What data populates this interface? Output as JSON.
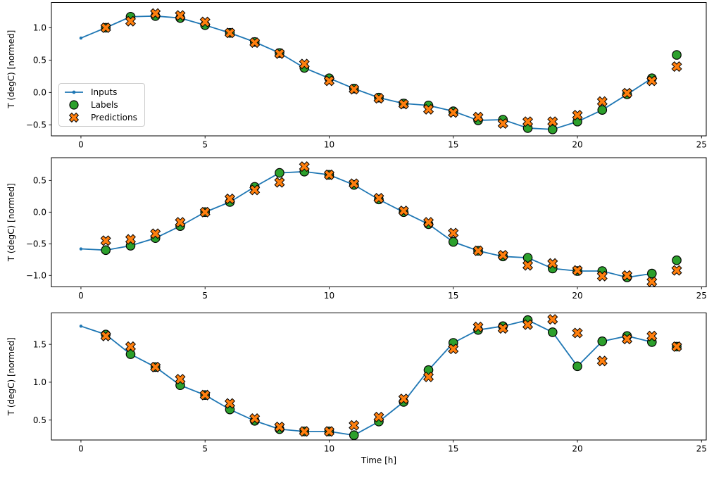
{
  "figure": {
    "background": "#ffffff",
    "frame_color": "#000000"
  },
  "colors": {
    "inputs": "#1f77b4",
    "labels": "#2ca02c",
    "predictions": "#ff7f0e",
    "marker_edge": "#000000",
    "legend_border": "#cccccc"
  },
  "legend": {
    "position": "upper-left-of-first-subplot",
    "items": [
      {
        "label": "Inputs",
        "swatch": "line-dot-icon"
      },
      {
        "label": "Labels",
        "swatch": "circle-icon"
      },
      {
        "label": "Predictions",
        "swatch": "x-icon"
      }
    ]
  },
  "chart_data": [
    {
      "type": "line",
      "title": "",
      "xlabel": "",
      "ylabel": "T (degC) [normed]",
      "xlim": [
        -1.19,
        25.19
      ],
      "ylim": [
        -0.67,
        1.39
      ],
      "xticks": [
        0,
        5,
        10,
        15,
        20,
        25
      ],
      "xticklabels": [
        "0",
        "5",
        "10",
        "15",
        "20",
        "25"
      ],
      "yticks": [
        1.0,
        0.5,
        0.0,
        -0.5
      ],
      "yticklabels": [
        "1.0",
        "0.5",
        "0.0",
        "−0.5"
      ],
      "grid": false,
      "has_legend": true,
      "series": [
        {
          "name": "Inputs",
          "style": "line-dot",
          "color": "#1f77b4",
          "x": [
            0,
            1,
            2,
            3,
            4,
            5,
            6,
            7,
            8,
            9,
            10,
            11,
            12,
            13,
            14,
            15,
            16,
            17,
            18,
            19,
            20,
            21,
            22,
            23
          ],
          "y": [
            0.84,
            1.0,
            1.17,
            1.18,
            1.15,
            1.04,
            0.92,
            0.78,
            0.61,
            0.38,
            0.22,
            0.06,
            -0.08,
            -0.17,
            -0.2,
            -0.29,
            -0.43,
            -0.42,
            -0.55,
            -0.57,
            -0.45,
            -0.27,
            -0.03,
            0.22
          ]
        },
        {
          "name": "Labels",
          "style": "circle",
          "color": "#2ca02c",
          "x": [
            1,
            2,
            3,
            4,
            5,
            6,
            7,
            8,
            9,
            10,
            11,
            12,
            13,
            14,
            15,
            16,
            17,
            18,
            19,
            20,
            21,
            22,
            23,
            24
          ],
          "y": [
            1.0,
            1.17,
            1.18,
            1.15,
            1.04,
            0.92,
            0.78,
            0.61,
            0.38,
            0.22,
            0.06,
            -0.08,
            -0.17,
            -0.2,
            -0.29,
            -0.43,
            -0.42,
            -0.55,
            -0.57,
            -0.45,
            -0.27,
            -0.03,
            0.22,
            0.58
          ]
        },
        {
          "name": "Predictions",
          "style": "x",
          "color": "#ff7f0e",
          "x": [
            1,
            2,
            3,
            4,
            5,
            6,
            7,
            8,
            9,
            10,
            11,
            12,
            13,
            14,
            15,
            16,
            17,
            18,
            19,
            20,
            21,
            22,
            23,
            24
          ],
          "y": [
            1.0,
            1.1,
            1.22,
            1.19,
            1.09,
            0.92,
            0.77,
            0.6,
            0.44,
            0.18,
            0.05,
            -0.09,
            -0.18,
            -0.26,
            -0.31,
            -0.38,
            -0.48,
            -0.45,
            -0.45,
            -0.35,
            -0.14,
            -0.01,
            0.18,
            0.4
          ]
        }
      ]
    },
    {
      "type": "line",
      "title": "",
      "xlabel": "",
      "ylabel": "T (degC) [normed]",
      "xlim": [
        -1.19,
        25.19
      ],
      "ylim": [
        -1.18,
        0.86
      ],
      "xticks": [
        0,
        5,
        10,
        15,
        20,
        25
      ],
      "xticklabels": [
        "0",
        "5",
        "10",
        "15",
        "20",
        "25"
      ],
      "yticks": [
        0.5,
        0.0,
        -0.5,
        -1.0
      ],
      "yticklabels": [
        "0.5",
        "0.0",
        "−0.5",
        "−1.0"
      ],
      "grid": false,
      "has_legend": false,
      "series": [
        {
          "name": "Inputs",
          "style": "line-dot",
          "color": "#1f77b4",
          "x": [
            0,
            1,
            2,
            3,
            4,
            5,
            6,
            7,
            8,
            9,
            10,
            11,
            12,
            13,
            14,
            15,
            16,
            17,
            18,
            19,
            20,
            21,
            22,
            23
          ],
          "y": [
            -0.58,
            -0.6,
            -0.53,
            -0.41,
            -0.22,
            0.0,
            0.16,
            0.4,
            0.62,
            0.64,
            0.59,
            0.43,
            0.2,
            0.0,
            -0.19,
            -0.47,
            -0.61,
            -0.7,
            -0.72,
            -0.89,
            -0.93,
            -0.93,
            -1.03,
            -0.97
          ]
        },
        {
          "name": "Labels",
          "style": "circle",
          "color": "#2ca02c",
          "x": [
            1,
            2,
            3,
            4,
            5,
            6,
            7,
            8,
            9,
            10,
            11,
            12,
            13,
            14,
            15,
            16,
            17,
            18,
            19,
            20,
            21,
            22,
            23,
            24
          ],
          "y": [
            -0.6,
            -0.53,
            -0.41,
            -0.22,
            0.0,
            0.16,
            0.4,
            0.62,
            0.64,
            0.59,
            0.43,
            0.2,
            0.0,
            -0.19,
            -0.47,
            -0.61,
            -0.7,
            -0.72,
            -0.89,
            -0.93,
            -0.93,
            -1.03,
            -0.97,
            -0.76
          ]
        },
        {
          "name": "Predictions",
          "style": "x",
          "color": "#ff7f0e",
          "x": [
            1,
            2,
            3,
            4,
            5,
            6,
            7,
            8,
            9,
            10,
            11,
            12,
            13,
            14,
            15,
            16,
            17,
            18,
            19,
            20,
            21,
            22,
            23,
            24
          ],
          "y": [
            -0.45,
            -0.43,
            -0.34,
            -0.16,
            0.0,
            0.21,
            0.35,
            0.47,
            0.72,
            0.59,
            0.45,
            0.22,
            0.02,
            -0.16,
            -0.33,
            -0.61,
            -0.68,
            -0.84,
            -0.81,
            -0.92,
            -1.01,
            -1.0,
            -1.1,
            -0.92
          ]
        }
      ]
    },
    {
      "type": "line",
      "title": "",
      "xlabel": "Time [h]",
      "ylabel": "T (degC) [normed]",
      "xlim": [
        -1.19,
        25.19
      ],
      "ylim": [
        0.237,
        1.915
      ],
      "xticks": [
        0,
        5,
        10,
        15,
        20,
        25
      ],
      "xticklabels": [
        "0",
        "5",
        "10",
        "15",
        "20",
        "25"
      ],
      "yticks": [
        1.5,
        1.0,
        0.5
      ],
      "yticklabels": [
        "1.5",
        "1.0",
        "0.5"
      ],
      "grid": false,
      "has_legend": false,
      "series": [
        {
          "name": "Inputs",
          "style": "line-dot",
          "color": "#1f77b4",
          "x": [
            0,
            1,
            2,
            3,
            4,
            5,
            6,
            7,
            8,
            9,
            10,
            11,
            12,
            13,
            14,
            15,
            16,
            17,
            18,
            19,
            20,
            21,
            22,
            23
          ],
          "y": [
            1.74,
            1.63,
            1.37,
            1.2,
            0.96,
            0.83,
            0.64,
            0.49,
            0.38,
            0.35,
            0.35,
            0.3,
            0.48,
            0.74,
            1.16,
            1.52,
            1.69,
            1.74,
            1.82,
            1.66,
            1.21,
            1.54,
            1.61,
            1.53
          ]
        },
        {
          "name": "Labels",
          "style": "circle",
          "color": "#2ca02c",
          "x": [
            1,
            2,
            3,
            4,
            5,
            6,
            7,
            8,
            9,
            10,
            11,
            12,
            13,
            14,
            15,
            16,
            17,
            18,
            19,
            20,
            21,
            22,
            23,
            24
          ],
          "y": [
            1.63,
            1.37,
            1.2,
            0.96,
            0.83,
            0.64,
            0.49,
            0.38,
            0.35,
            0.35,
            0.3,
            0.48,
            0.74,
            1.16,
            1.52,
            1.69,
            1.74,
            1.82,
            1.66,
            1.21,
            1.54,
            1.61,
            1.53,
            1.47
          ]
        },
        {
          "name": "Predictions",
          "style": "x",
          "color": "#ff7f0e",
          "x": [
            1,
            2,
            3,
            4,
            5,
            6,
            7,
            8,
            9,
            10,
            11,
            12,
            13,
            14,
            15,
            16,
            17,
            18,
            19,
            20,
            21,
            22,
            23,
            24
          ],
          "y": [
            1.61,
            1.47,
            1.2,
            1.04,
            0.83,
            0.72,
            0.52,
            0.41,
            0.35,
            0.35,
            0.43,
            0.54,
            0.78,
            1.07,
            1.44,
            1.73,
            1.71,
            1.76,
            1.83,
            1.65,
            1.28,
            1.57,
            1.61,
            1.47
          ]
        }
      ]
    }
  ]
}
